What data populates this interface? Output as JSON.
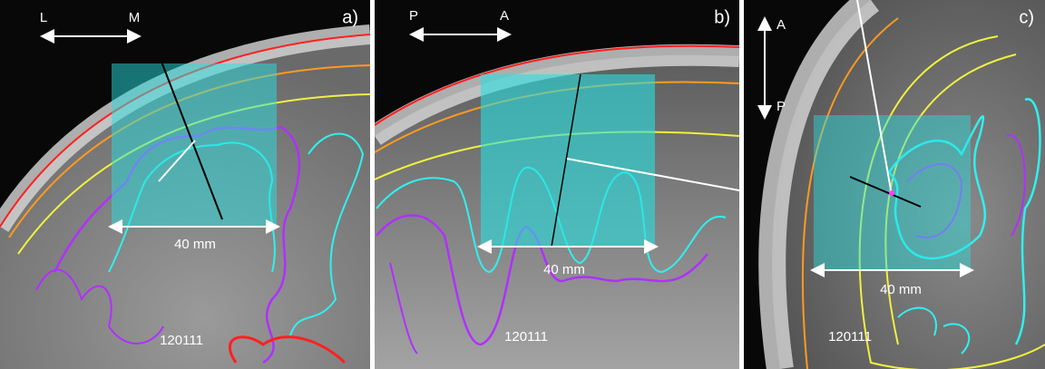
{
  "panels": [
    {
      "label": "a)",
      "orientation": [
        "L",
        "M"
      ],
      "scale_label": "40 mm",
      "subject_id": "120111"
    },
    {
      "label": "b)",
      "orientation": [
        "P",
        "A"
      ],
      "scale_label": "40 mm",
      "subject_id": "120111"
    },
    {
      "label": "c)",
      "orientation": [
        "A",
        "P"
      ],
      "scale_label": "40 mm",
      "subject_id": "120111"
    }
  ]
}
